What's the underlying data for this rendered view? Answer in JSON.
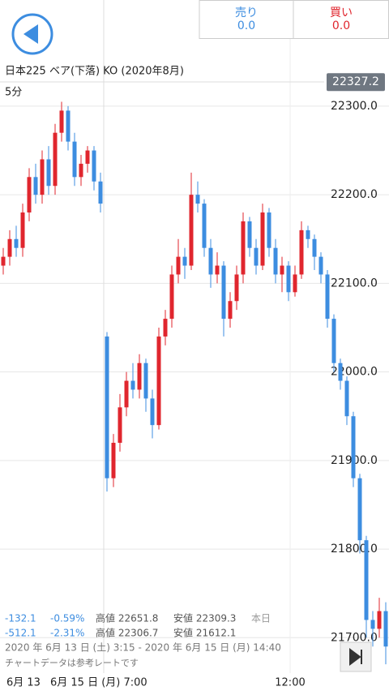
{
  "header": {
    "sell_label": "売り",
    "sell_value": "0.0",
    "buy_label": "買い",
    "buy_value": "0.0"
  },
  "chart_data": {
    "type": "candlestick",
    "title": "日本225 ベア(下落) KO (2020年8月)",
    "subtitle": "5分",
    "current_price": 22327.2,
    "up_color": "#e0262e",
    "down_color": "#3d8de0",
    "open": [
      22120,
      22130,
      22150,
      22140,
      22180,
      22220,
      22200,
      22240,
      22210,
      22270,
      22295,
      22260,
      22220,
      22235,
      22250,
      22215,
      22040,
      21880,
      21920,
      21960,
      21990,
      21980,
      22010,
      21970,
      21940,
      22040,
      22060,
      22110,
      22130,
      22120,
      22200,
      22190,
      22140,
      22110,
      22120,
      22060,
      22080,
      22110,
      22170,
      22140,
      22120,
      22180,
      22140,
      22110,
      22120,
      22090,
      22110,
      22160,
      22150,
      22130,
      22110,
      22060,
      22010,
      21990,
      21950,
      21880,
      21810,
      21720,
      21710,
      21730
    ],
    "high": [
      22140,
      22160,
      22165,
      22190,
      22230,
      22235,
      22250,
      22255,
      22280,
      22305,
      22300,
      22270,
      22245,
      22255,
      22255,
      22225,
      22045,
      21930,
      21975,
      22000,
      22010,
      22020,
      22015,
      21980,
      22050,
      22070,
      22120,
      22150,
      22140,
      22225,
      22215,
      22195,
      22150,
      22135,
      22125,
      22090,
      22120,
      22180,
      22175,
      22150,
      22190,
      22185,
      22150,
      22130,
      22125,
      22120,
      22170,
      22165,
      22155,
      22135,
      22115,
      22065,
      22015,
      21995,
      21955,
      21885,
      21815,
      21730,
      21745,
      21740
    ],
    "low": [
      22110,
      22120,
      22130,
      22130,
      22170,
      22190,
      22190,
      22200,
      22200,
      22260,
      22250,
      22210,
      22210,
      22225,
      22205,
      22180,
      21865,
      21870,
      21910,
      21950,
      21970,
      21970,
      21955,
      21925,
      21935,
      22030,
      22050,
      22100,
      22105,
      22115,
      22180,
      22130,
      22095,
      22100,
      22040,
      22050,
      22070,
      22100,
      22130,
      22110,
      22115,
      22130,
      22100,
      22090,
      22080,
      22085,
      22105,
      22140,
      22115,
      22100,
      22050,
      22000,
      21980,
      21940,
      21870,
      21795,
      21700,
      21690,
      21700,
      21670
    ],
    "close": [
      22130,
      22150,
      22140,
      22180,
      22220,
      22200,
      22240,
      22210,
      22270,
      22295,
      22260,
      22220,
      22235,
      22250,
      22215,
      22190,
      21880,
      21920,
      21960,
      21990,
      21980,
      22010,
      21970,
      21940,
      22040,
      22060,
      22110,
      22130,
      22120,
      22200,
      22190,
      22140,
      22110,
      22120,
      22060,
      22080,
      22110,
      22170,
      22140,
      22120,
      22180,
      22140,
      22110,
      22120,
      22090,
      22110,
      22160,
      22150,
      22130,
      22110,
      22060,
      22010,
      21990,
      21950,
      21880,
      21810,
      21720,
      21710,
      21730,
      21690
    ],
    "ylim": [
      21660,
      22310
    ],
    "yticks": [
      {
        "value": 21700,
        "label": "21700.0"
      },
      {
        "value": 21800,
        "label": "21800.0"
      },
      {
        "value": 21900,
        "label": "21900.0"
      },
      {
        "value": 22000,
        "label": "22000.0"
      },
      {
        "value": 22100,
        "label": "22100.0"
      },
      {
        "value": 22200,
        "label": "22200.0"
      },
      {
        "value": 22300,
        "label": "22300.0"
      }
    ],
    "grid": true,
    "x_tick_labels": [
      "6月 13",
      "6月 15 日 (月) 7:00",
      "12:00"
    ]
  },
  "footer": {
    "line1": [
      "-132.1",
      "-0.59%",
      "高値 22651.8",
      "安値 22309.3",
      "本日"
    ],
    "line2": [
      "-512.1",
      "-2.31%",
      "高値 22306.7",
      "安値 21612.1"
    ],
    "range": "2020 年 6月 13 日 (土) 3:15 - 2020 年 6月 15 日 (月) 14:40",
    "note": "チャートデータは参考レートです"
  }
}
